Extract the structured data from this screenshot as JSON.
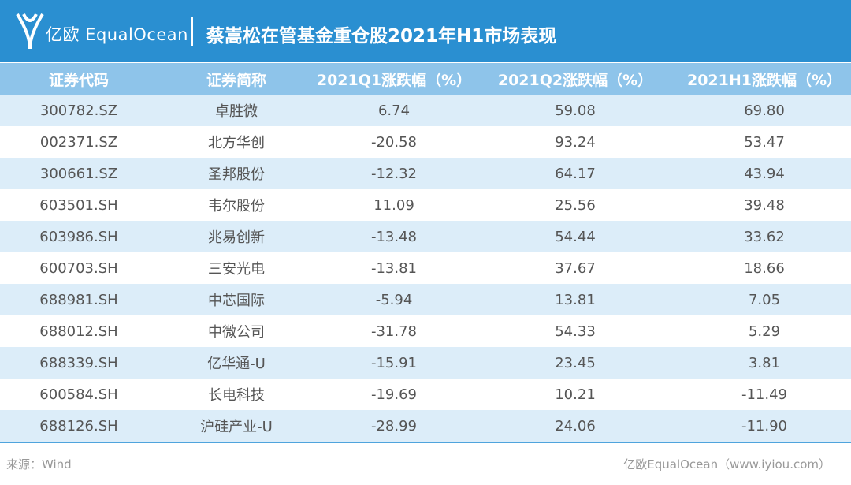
{
  "header": {
    "logo": "亿欧 EqualOcean",
    "title": "蔡嵩松在管基金重仓股2021年H1市场表现"
  },
  "table": {
    "columns": [
      "证券代码",
      "证券简称",
      "2021Q1涨跌幅（%）",
      "2021Q2涨跌幅（%）",
      "2021H1涨跌幅（%）"
    ],
    "rows": [
      [
        "300782.SZ",
        "卓胜微",
        "6.74",
        "59.08",
        "69.80"
      ],
      [
        "002371.SZ",
        "北方华创",
        "-20.58",
        "93.24",
        "53.47"
      ],
      [
        "300661.SZ",
        "圣邦股份",
        "-12.32",
        "64.17",
        "43.94"
      ],
      [
        "603501.SH",
        "韦尔股份",
        "11.09",
        "25.56",
        "39.48"
      ],
      [
        "603986.SH",
        "兆易创新",
        "-13.48",
        "54.44",
        "33.62"
      ],
      [
        "600703.SH",
        "三安光电",
        "-13.81",
        "37.67",
        "18.66"
      ],
      [
        "688981.SH",
        "中芯国际",
        "-5.94",
        "13.81",
        "7.05"
      ],
      [
        "688012.SH",
        "中微公司",
        "-31.78",
        "54.33",
        "5.29"
      ],
      [
        "688339.SH",
        "亿华通-U",
        "-15.91",
        "23.45",
        "3.81"
      ],
      [
        "600584.SH",
        "长电科技",
        "-19.69",
        "10.21",
        "-11.49"
      ],
      [
        "688126.SH",
        "沪硅产业-U",
        "-28.99",
        "24.06",
        "-11.90"
      ]
    ]
  },
  "footer": {
    "source": "来源：Wind",
    "credit": "亿欧EqualOcean（www.iyiou.com）"
  }
}
